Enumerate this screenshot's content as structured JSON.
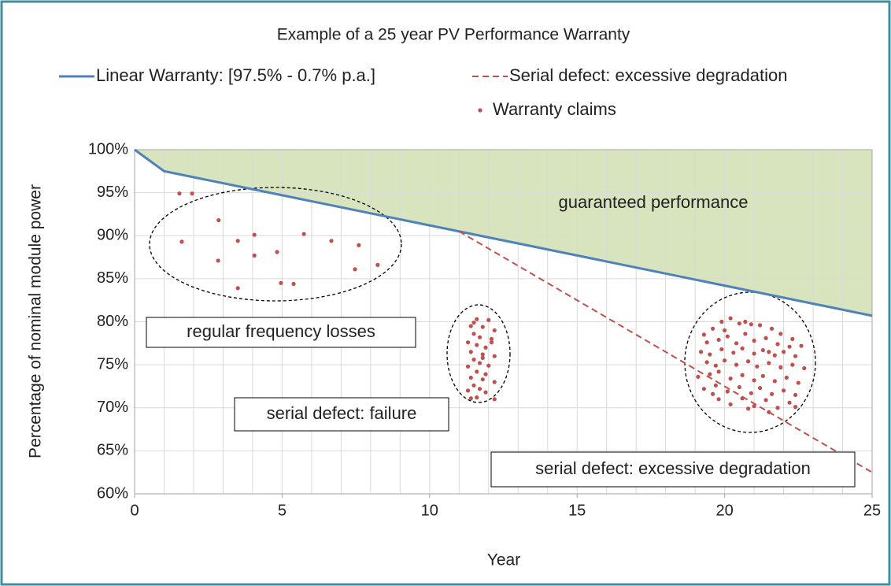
{
  "chart_data": {
    "type": "line",
    "title": "Example of a 25 year PV Performance Warranty",
    "xlabel": "Year",
    "ylabel": "Percentage of nominal module power",
    "xlim": [
      0,
      25
    ],
    "ylim": [
      60,
      100
    ],
    "xticks": [
      0,
      5,
      10,
      15,
      20,
      25
    ],
    "xminorticks": [
      0,
      1,
      2,
      3,
      4,
      5,
      6,
      7,
      8,
      9,
      10,
      11,
      12,
      13,
      14,
      15,
      16,
      17,
      18,
      19,
      20,
      21,
      22,
      23,
      24,
      25
    ],
    "yticks": [
      {
        "value": 60,
        "label": "60%"
      },
      {
        "value": 65,
        "label": "65%"
      },
      {
        "value": 70,
        "label": "70%"
      },
      {
        "value": 75,
        "label": "75%"
      },
      {
        "value": 80,
        "label": "80%"
      },
      {
        "value": 85,
        "label": "85%"
      },
      {
        "value": 90,
        "label": "90%"
      },
      {
        "value": 95,
        "label": "95%"
      },
      {
        "value": 100,
        "label": "100%"
      }
    ],
    "grid": true,
    "legend": "top",
    "series": [
      {
        "name": "Linear Warranty: [97.5% - 0.7% p.a.]",
        "color": "#4f81bd",
        "style": "solid",
        "area_color": "#d7e4bd",
        "x": [
          0,
          1,
          25
        ],
        "values": [
          100,
          97.5,
          80.7
        ]
      },
      {
        "name": "Serial defect: excessive degradation",
        "color": "#c0504d",
        "style": "dashed",
        "x": [
          11,
          25
        ],
        "values": [
          90.5,
          62.5
        ]
      },
      {
        "name": "Warranty claims",
        "color": "#c0504d",
        "style": "markers",
        "x": [
          1.52,
          1.95,
          2.85,
          1.6,
          3.5,
          4.06,
          5.74,
          6.67,
          7.6,
          2.83,
          4.06,
          4.83,
          3.5,
          4.96,
          5.39,
          7.47,
          8.24,
          11.6,
          12.0,
          11.4,
          11.8,
          12.2,
          11.5,
          11.7,
          12.1,
          11.3,
          11.6,
          11.9,
          11.4,
          11.8,
          12.2,
          11.5,
          11.7,
          11.3,
          12.0,
          11.6,
          11.9,
          11.4,
          11.8,
          12.2,
          11.5,
          11.7,
          11.3,
          11.9,
          11.6,
          12.2,
          11.4,
          11.8,
          12.1,
          11.5,
          19.3,
          19.6,
          19.9,
          20.2,
          20.5,
          20.9,
          21.2,
          21.6,
          21.9,
          22.3,
          19.4,
          19.8,
          20.1,
          20.4,
          20.7,
          21.0,
          21.4,
          21.8,
          22.2,
          22.6,
          19.2,
          19.5,
          19.9,
          20.3,
          20.6,
          21.0,
          21.3,
          21.7,
          22.0,
          22.4,
          19.4,
          19.7,
          20.0,
          20.4,
          20.8,
          21.1,
          21.5,
          21.9,
          22.3,
          22.7,
          19.1,
          19.5,
          19.8,
          20.2,
          20.6,
          21.0,
          21.3,
          21.7,
          22.1,
          22.5,
          19.3,
          19.7,
          20.1,
          20.5,
          20.9,
          21.2,
          21.6,
          22.0,
          22.4,
          19.8,
          20.2,
          20.6,
          21.0,
          21.4,
          21.8,
          22.2,
          20.8,
          21.5,
          22.4,
          20.0,
          20.7,
          21.5,
          19.6
        ],
        "values": [
          94.9,
          94.9,
          91.8,
          89.3,
          89.4,
          90.1,
          90.2,
          89.4,
          88.9,
          87.1,
          87.7,
          88.1,
          83.9,
          84.5,
          84.4,
          86.1,
          86.6,
          80.3,
          80.2,
          79.5,
          79.4,
          79.0,
          78.6,
          78.2,
          78.0,
          77.6,
          77.3,
          77.0,
          76.5,
          76.2,
          76.0,
          75.6,
          75.2,
          74.8,
          74.9,
          74.2,
          73.9,
          73.5,
          73.3,
          73.0,
          72.6,
          72.2,
          72.0,
          71.8,
          71.2,
          71.0,
          71.1,
          75.8,
          77.6,
          79.9,
          78.5,
          79.2,
          80.0,
          80.4,
          79.8,
          79.7,
          79.6,
          79.2,
          78.6,
          78.0,
          77.6,
          77.9,
          78.3,
          77.5,
          78.6,
          77.8,
          78.1,
          77.4,
          77.1,
          77.2,
          76.5,
          76.2,
          76.8,
          76.4,
          76.9,
          76.3,
          76.7,
          76.1,
          76.5,
          76.0,
          75.3,
          74.9,
          75.5,
          75.0,
          75.4,
          74.8,
          75.2,
          74.7,
          75.0,
          74.6,
          73.6,
          73.9,
          74.2,
          73.4,
          73.8,
          73.2,
          73.7,
          73.1,
          73.5,
          72.9,
          72.2,
          72.6,
          71.9,
          72.4,
          71.7,
          72.3,
          71.6,
          72.0,
          71.5,
          71.0,
          70.4,
          71.1,
          70.2,
          70.9,
          70.0,
          70.6,
          69.9,
          69.5,
          70.1,
          79.0,
          80.0,
          76.5,
          71.6
        ]
      }
    ],
    "annotations": [
      "guaranteed performance",
      "regular frequency losses",
      "serial defect: failure",
      "serial defect: excessive degradation"
    ]
  }
}
